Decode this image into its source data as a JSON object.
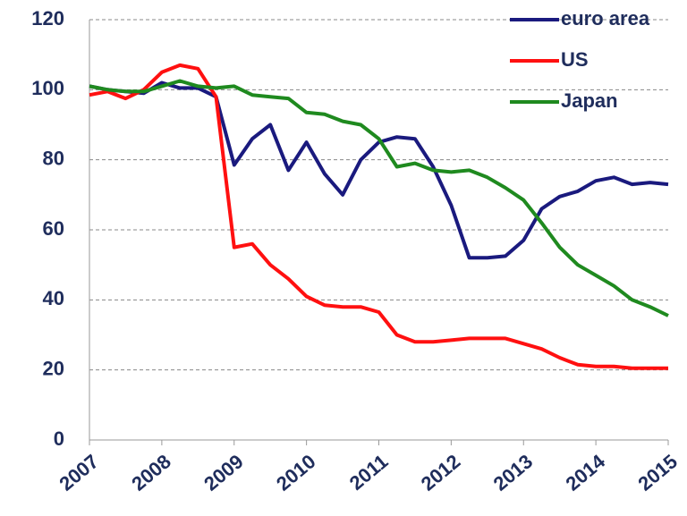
{
  "chart_data": {
    "type": "line",
    "x": [
      2007,
      2007.25,
      2007.5,
      2007.75,
      2008,
      2008.25,
      2008.5,
      2008.75,
      2009,
      2009.25,
      2009.5,
      2009.75,
      2010,
      2010.25,
      2010.5,
      2010.75,
      2011,
      2011.25,
      2011.5,
      2011.75,
      2012,
      2012.25,
      2012.5,
      2012.75,
      2013,
      2013.25,
      2013.5,
      2013.75,
      2014,
      2014.25,
      2014.5,
      2014.75,
      2015
    ],
    "series": [
      {
        "name": "euro area",
        "color": "#1a1a7e",
        "values": [
          101,
          100,
          99.5,
          99,
          102,
          100.5,
          100.5,
          98,
          78.5,
          86,
          90,
          77,
          85,
          76,
          70,
          80,
          85,
          86.5,
          86,
          78,
          67,
          52,
          52,
          52.5,
          57,
          66,
          69.5,
          71,
          74,
          75,
          73,
          73.5,
          73
        ]
      },
      {
        "name": "US",
        "color": "#ff1010",
        "values": [
          98.5,
          99.5,
          97.5,
          100,
          105,
          107,
          106,
          98,
          55,
          56,
          50,
          46,
          41,
          38.5,
          38,
          38,
          36.5,
          30,
          28,
          28,
          28.5,
          29,
          29,
          29,
          27.5,
          26,
          23.5,
          21.5,
          21,
          21,
          20.5,
          20.5,
          20.5
        ]
      },
      {
        "name": "Japan",
        "color": "#1f8a1f",
        "values": [
          101,
          100,
          99.5,
          99.5,
          101,
          102.5,
          101,
          100.5,
          101,
          98.5,
          98,
          97.5,
          93.5,
          93,
          91,
          90,
          86,
          78,
          79,
          77,
          76.5,
          77,
          75,
          72,
          68.5,
          62,
          55,
          50,
          47,
          44,
          40,
          38,
          35.5
        ]
      }
    ],
    "xlim": [
      2007,
      2015
    ],
    "xticks": [
      2007,
      2008,
      2009,
      2010,
      2011,
      2012,
      2013,
      2014,
      2015
    ],
    "ylim": [
      0,
      120
    ],
    "yticks": [
      0,
      20,
      40,
      60,
      80,
      100,
      120
    ],
    "grid": true,
    "legend": "top-right"
  }
}
